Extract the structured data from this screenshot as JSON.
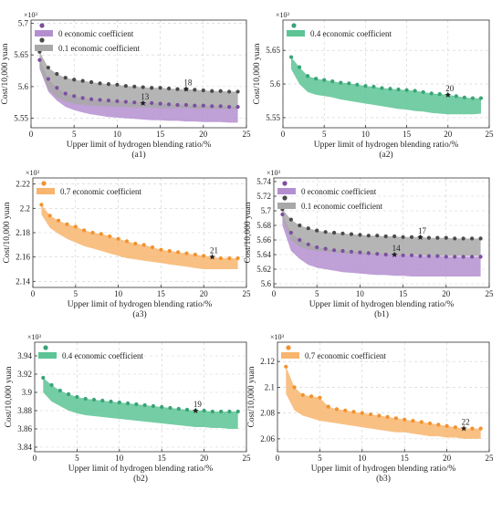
{
  "xlabel": "Upper limit of hydrogen blending ratio/%",
  "ylabel": "Cost/10,000 yuan",
  "multiplier": "×10³",
  "colors": {
    "purple": "#7b4fa0",
    "purple_fill": "#b48fd0",
    "gray": "#4a4a4a",
    "gray_fill": "#a8a8a8",
    "green": "#3aa378",
    "green_fill": "#5cc494",
    "orange": "#f2922e",
    "orange_fill": "#f8b56d"
  },
  "chart_data": [
    {
      "type": "area",
      "id": "a1",
      "caption": "(a1)",
      "title": "",
      "xlabel": "Upper limit of hydrogen blending ratio/%",
      "ylabel": "Cost/10,000 yuan",
      "xlim": [
        0,
        25
      ],
      "ylim": [
        5.535,
        5.705
      ],
      "xticks": [
        0,
        5,
        10,
        15,
        20,
        25
      ],
      "yticks": [
        5.55,
        5.6,
        5.65,
        5.7
      ],
      "ytick_labels": [
        "5.55",
        "5.6",
        "5.65",
        "5.7"
      ],
      "legend": "top-left",
      "series": [
        {
          "name": "0 economic coefficient",
          "color": "#7b4fa0",
          "fill": "#b48fd0",
          "x": [
            1,
            2,
            3,
            4,
            5,
            6,
            7,
            8,
            9,
            10,
            11,
            12,
            13,
            14,
            15,
            16,
            17,
            18,
            19,
            20,
            21,
            22,
            23,
            24
          ],
          "upper": [
            5.642,
            5.612,
            5.598,
            5.589,
            5.585,
            5.582,
            5.58,
            5.579,
            5.578,
            5.577,
            5.576,
            5.575,
            5.574,
            5.574,
            5.573,
            5.572,
            5.571,
            5.571,
            5.57,
            5.57,
            5.569,
            5.569,
            5.568,
            5.568
          ],
          "lower": [
            5.628,
            5.592,
            5.578,
            5.568,
            5.563,
            5.559,
            5.556,
            5.554,
            5.552,
            5.551,
            5.55,
            5.549,
            5.548,
            5.547,
            5.547,
            5.546,
            5.546,
            5.545,
            5.545,
            5.544,
            5.544,
            5.544,
            5.543,
            5.543
          ],
          "marker_label": "13",
          "marker_x": 13
        },
        {
          "name": "0.1 economic coefficient",
          "color": "#4a4a4a",
          "fill": "#a8a8a8",
          "x": [
            1,
            2,
            3,
            4,
            5,
            6,
            7,
            8,
            9,
            10,
            11,
            12,
            13,
            14,
            15,
            16,
            17,
            18,
            19,
            20,
            21,
            22,
            23,
            24
          ],
          "upper": [
            5.655,
            5.63,
            5.62,
            5.614,
            5.611,
            5.609,
            5.607,
            5.605,
            5.604,
            5.603,
            5.601,
            5.6,
            5.599,
            5.598,
            5.598,
            5.597,
            5.596,
            5.596,
            5.595,
            5.594,
            5.593,
            5.593,
            5.592,
            5.592
          ],
          "lower": [
            5.63,
            5.596,
            5.583,
            5.576,
            5.573,
            5.571,
            5.57,
            5.569,
            5.569,
            5.568,
            5.568,
            5.567,
            5.567,
            5.567,
            5.566,
            5.566,
            5.566,
            5.566,
            5.565,
            5.565,
            5.565,
            5.565,
            5.565,
            5.565
          ],
          "marker_label": "18",
          "marker_x": 18
        }
      ]
    },
    {
      "type": "area",
      "id": "a2",
      "caption": "(a2)",
      "title": "",
      "xlabel": "Upper limit of hydrogen blending ratio/%",
      "ylabel": "Cost/10,000 yuan",
      "xlim": [
        0,
        25
      ],
      "ylim": [
        5.535,
        5.695
      ],
      "xticks": [
        0,
        5,
        10,
        15,
        20,
        25
      ],
      "yticks": [
        5.55,
        5.6,
        5.65
      ],
      "ytick_labels": [
        "5.55",
        "5.6",
        "5.65"
      ],
      "legend": "top-left",
      "series": [
        {
          "name": "0.4 economic coefficient",
          "color": "#3aa378",
          "fill": "#5cc494",
          "x": [
            1,
            2,
            3,
            4,
            5,
            6,
            7,
            8,
            9,
            10,
            11,
            12,
            13,
            14,
            15,
            16,
            17,
            18,
            19,
            20,
            21,
            22,
            23,
            24
          ],
          "upper": [
            5.64,
            5.625,
            5.612,
            5.608,
            5.606,
            5.604,
            5.602,
            5.601,
            5.599,
            5.597,
            5.596,
            5.594,
            5.593,
            5.592,
            5.591,
            5.59,
            5.588,
            5.586,
            5.585,
            5.584,
            5.582,
            5.58,
            5.579,
            5.579
          ],
          "lower": [
            5.622,
            5.6,
            5.588,
            5.584,
            5.582,
            5.58,
            5.577,
            5.575,
            5.573,
            5.571,
            5.569,
            5.567,
            5.565,
            5.563,
            5.562,
            5.56,
            5.559,
            5.557,
            5.556,
            5.555,
            5.555,
            5.555,
            5.555,
            5.556
          ],
          "marker_label": "20",
          "marker_x": 20
        }
      ]
    },
    {
      "type": "area",
      "id": "a3",
      "caption": "(a3)",
      "title": "",
      "xlabel": "Upper limit of hydrogen blending ratio/%",
      "ylabel": "Cost/10,000 yuan",
      "xlim": [
        0,
        25
      ],
      "ylim": [
        2.135,
        2.225
      ],
      "xticks": [
        0,
        5,
        10,
        15,
        20,
        25
      ],
      "yticks": [
        2.14,
        2.16,
        2.18,
        2.2,
        2.22
      ],
      "ytick_labels": [
        "2.14",
        "2.16",
        "2.18",
        "2.2",
        "2.22"
      ],
      "legend": "top-left",
      "series": [
        {
          "name": "0.7 economic coefficient",
          "color": "#f2922e",
          "fill": "#f8b56d",
          "x": [
            1,
            2,
            3,
            4,
            5,
            6,
            7,
            8,
            9,
            10,
            11,
            12,
            13,
            14,
            15,
            16,
            17,
            18,
            19,
            20,
            21,
            22,
            23,
            24
          ],
          "upper": [
            2.203,
            2.194,
            2.19,
            2.187,
            2.185,
            2.182,
            2.18,
            2.179,
            2.177,
            2.175,
            2.173,
            2.171,
            2.17,
            2.168,
            2.166,
            2.165,
            2.164,
            2.163,
            2.162,
            2.161,
            2.16,
            2.159,
            2.159,
            2.159
          ],
          "lower": [
            2.195,
            2.184,
            2.179,
            2.175,
            2.172,
            2.169,
            2.167,
            2.165,
            2.163,
            2.161,
            2.159,
            2.158,
            2.157,
            2.156,
            2.155,
            2.154,
            2.153,
            2.152,
            2.151,
            2.15,
            2.15,
            2.15,
            2.15,
            2.15
          ],
          "marker_label": "21",
          "marker_x": 21
        }
      ]
    },
    {
      "type": "area",
      "id": "b1",
      "caption": "(b1)",
      "title": "",
      "xlabel": "Upper limit of hydrogen blending ratio/%",
      "ylabel": "Cost/10,000 yuan",
      "xlim": [
        0,
        25
      ],
      "ylim": [
        5.595,
        5.745
      ],
      "xticks": [
        0,
        5,
        10,
        15,
        20,
        25
      ],
      "yticks": [
        5.6,
        5.62,
        5.64,
        5.66,
        5.68,
        5.7,
        5.72,
        5.74
      ],
      "ytick_labels": [
        "5.6",
        "5.62",
        "5.64",
        "5.66",
        "5.68",
        "5.7",
        "5.72",
        "5.74"
      ],
      "legend": "top-left",
      "series": [
        {
          "name": "0 economic coefficient",
          "color": "#7b4fa0",
          "fill": "#b48fd0",
          "x": [
            1,
            2,
            3,
            4,
            5,
            6,
            7,
            8,
            9,
            10,
            11,
            12,
            13,
            14,
            15,
            16,
            17,
            18,
            19,
            20,
            21,
            22,
            23,
            24
          ],
          "upper": [
            5.695,
            5.67,
            5.66,
            5.654,
            5.65,
            5.648,
            5.646,
            5.645,
            5.644,
            5.643,
            5.642,
            5.641,
            5.64,
            5.64,
            5.639,
            5.639,
            5.638,
            5.638,
            5.638,
            5.637,
            5.637,
            5.637,
            5.637,
            5.637
          ],
          "lower": [
            5.68,
            5.645,
            5.634,
            5.626,
            5.622,
            5.62,
            5.618,
            5.616,
            5.615,
            5.614,
            5.613,
            5.612,
            5.612,
            5.611,
            5.611,
            5.61,
            5.61,
            5.61,
            5.61,
            5.61,
            5.61,
            5.61,
            5.61,
            5.61
          ],
          "marker_label": "14",
          "marker_x": 14
        },
        {
          "name": "0.1 economic coefficient",
          "color": "#4a4a4a",
          "fill": "#a8a8a8",
          "x": [
            1,
            2,
            3,
            4,
            5,
            6,
            7,
            8,
            9,
            10,
            11,
            12,
            13,
            14,
            15,
            16,
            17,
            18,
            19,
            20,
            21,
            22,
            23,
            24
          ],
          "upper": [
            5.702,
            5.688,
            5.68,
            5.676,
            5.673,
            5.671,
            5.67,
            5.669,
            5.668,
            5.667,
            5.666,
            5.666,
            5.665,
            5.665,
            5.664,
            5.664,
            5.664,
            5.663,
            5.663,
            5.663,
            5.662,
            5.662,
            5.662,
            5.662
          ],
          "lower": [
            5.69,
            5.66,
            5.651,
            5.647,
            5.645,
            5.644,
            5.643,
            5.642,
            5.641,
            5.641,
            5.64,
            5.64,
            5.64,
            5.639,
            5.639,
            5.639,
            5.639,
            5.638,
            5.638,
            5.638,
            5.638,
            5.638,
            5.638,
            5.638
          ],
          "marker_label": "17",
          "marker_x": 17
        }
      ]
    },
    {
      "type": "area",
      "id": "b2",
      "caption": "(b2)",
      "title": "",
      "xlabel": "Upper limit of hydrogen blending ratio/%",
      "ylabel": "Cost/10,000 yuan",
      "xlim": [
        0,
        25
      ],
      "ylim": [
        3.835,
        3.955
      ],
      "xticks": [
        0,
        5,
        10,
        15,
        20,
        25
      ],
      "yticks": [
        3.84,
        3.86,
        3.88,
        3.9,
        3.92,
        3.94
      ],
      "ytick_labels": [
        "3.84",
        "3.86",
        "3.88",
        "3.9",
        "3.92",
        "3.94"
      ],
      "legend": "top-left",
      "series": [
        {
          "name": "0.4 economic coefficient",
          "color": "#3aa378",
          "fill": "#5cc494",
          "x": [
            1,
            2,
            3,
            4,
            5,
            6,
            7,
            8,
            9,
            10,
            11,
            12,
            13,
            14,
            15,
            16,
            17,
            18,
            19,
            20,
            21,
            22,
            23,
            24
          ],
          "upper": [
            3.916,
            3.908,
            3.902,
            3.898,
            3.895,
            3.893,
            3.892,
            3.891,
            3.89,
            3.889,
            3.888,
            3.887,
            3.886,
            3.885,
            3.884,
            3.883,
            3.882,
            3.881,
            3.88,
            3.88,
            3.879,
            3.879,
            3.879,
            3.879
          ],
          "lower": [
            3.9,
            3.89,
            3.885,
            3.88,
            3.877,
            3.875,
            3.874,
            3.873,
            3.872,
            3.871,
            3.87,
            3.869,
            3.868,
            3.867,
            3.866,
            3.865,
            3.864,
            3.863,
            3.862,
            3.862,
            3.861,
            3.861,
            3.86,
            3.86
          ],
          "marker_label": "19",
          "marker_x": 19
        }
      ]
    },
    {
      "type": "area",
      "id": "b3",
      "caption": "(b3)",
      "title": "",
      "xlabel": "Upper limit of hydrogen blending ratio/%",
      "ylabel": "Cost/10,000 yuan",
      "xlim": [
        0,
        25
      ],
      "ylim": [
        2.05,
        2.135
      ],
      "xticks": [
        0,
        5,
        10,
        15,
        20,
        25
      ],
      "yticks": [
        2.06,
        2.08,
        2.1,
        2.12
      ],
      "ytick_labels": [
        "2.06",
        "2.08",
        "2.1",
        "2.12"
      ],
      "legend": "top-left",
      "series": [
        {
          "name": "0.7 economic coefficient",
          "color": "#f2922e",
          "fill": "#f8b56d",
          "x": [
            1,
            2,
            3,
            4,
            5,
            6,
            7,
            8,
            9,
            10,
            11,
            12,
            13,
            14,
            15,
            16,
            17,
            18,
            19,
            20,
            21,
            22,
            23,
            24
          ],
          "upper": [
            2.116,
            2.1,
            2.094,
            2.093,
            2.092,
            2.085,
            2.083,
            2.082,
            2.081,
            2.08,
            2.079,
            2.078,
            2.077,
            2.076,
            2.075,
            2.074,
            2.073,
            2.072,
            2.071,
            2.07,
            2.069,
            2.068,
            2.068,
            2.068
          ],
          "lower": [
            2.095,
            2.082,
            2.078,
            2.076,
            2.074,
            2.073,
            2.072,
            2.071,
            2.07,
            2.069,
            2.068,
            2.067,
            2.066,
            2.065,
            2.065,
            2.064,
            2.063,
            2.062,
            2.062,
            2.061,
            2.061,
            2.06,
            2.06,
            2.06
          ],
          "marker_label": "22",
          "marker_x": 22
        }
      ]
    }
  ]
}
